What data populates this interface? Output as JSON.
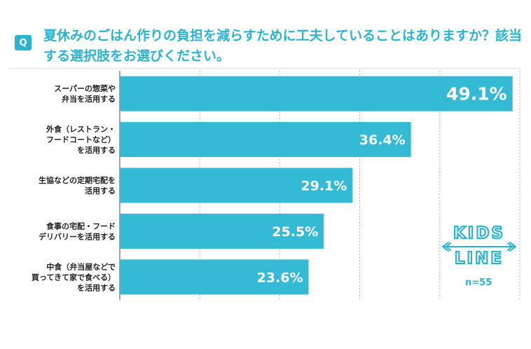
{
  "question": {
    "badge": "Q",
    "text": "夏休みのごはん作りの負担を減らすために工夫していることはありますか？該当する選択肢をお選びください。"
  },
  "colors": {
    "accent": "#2bb3cf",
    "bar": "#34bad5"
  },
  "logo": {
    "line1": "KIDS",
    "line2": "LINE"
  },
  "sample": "n=55",
  "chart_data": {
    "type": "bar",
    "orientation": "horizontal",
    "title": "",
    "xlabel": "",
    "ylabel": "",
    "xlim": [
      0,
      50
    ],
    "grid": true,
    "categories": [
      [
        "スーパーの惣菜や",
        "弁当を活用する"
      ],
      [
        "外食（レストラン・",
        "フードコートなど）",
        "を活用する"
      ],
      [
        "生協などの定期宅配を",
        "活用する"
      ],
      [
        "食事の宅配・フード",
        "デリバリーを活用する"
      ],
      [
        "中食（弁当屋などで",
        "買ってきて家で食べる）",
        "を活用する"
      ]
    ],
    "values": [
      49.1,
      36.4,
      29.1,
      25.5,
      23.6
    ],
    "value_labels": [
      "49.1%",
      "36.4%",
      "29.1%",
      "25.5%",
      "23.6%"
    ]
  }
}
